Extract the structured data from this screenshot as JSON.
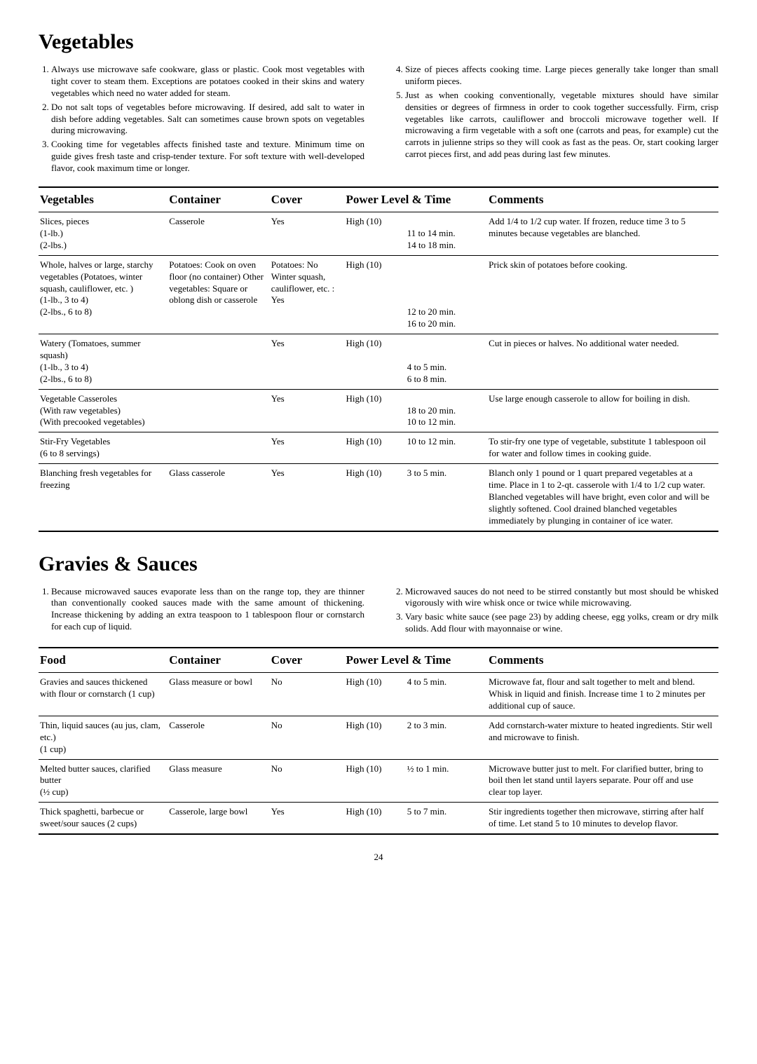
{
  "page_number": "24",
  "veg": {
    "heading": "Vegetables",
    "tips_left": [
      "Always use microwave safe cookware, glass or plastic. Cook most vegetables with tight cover to steam them. Exceptions are potatoes cooked in their skins and watery vegetables which need no water added for steam.",
      "Do not salt tops of vegetables before microwaving. If desired, add salt to water in dish before adding vegetables. Salt can sometimes cause brown spots on vegetables during microwaving.",
      "Cooking time for vegetables affects finished taste and texture. Minimum time on guide gives fresh taste and crisp-tender texture. For soft texture with well-developed flavor, cook maximum time or longer."
    ],
    "tips_right_start": 4,
    "tips_right": [
      "Size of pieces affects cooking time. Large pieces generally take longer than small uniform pieces.",
      "Just as when cooking conventionally, vegetable mixtures should have similar densities or degrees of firmness in order to cook together successfully. Firm, crisp vegetables like carrots, cauliflower and broccoli microwave together well. If microwaving a firm vegetable with a soft one (carrots and peas, for example) cut the carrots in julienne strips so they will cook as fast as the peas. Or, start cooking larger carrot pieces first, and add peas during last few minutes."
    ],
    "headers": [
      "Vegetables",
      "Container",
      "Cover",
      "Power Level & Time",
      "Comments"
    ],
    "rows": [
      {
        "c0": "Slices, pieces\n(1-lb.)\n(2-lbs.)",
        "c1": "Casserole",
        "c2": "Yes",
        "c3a": "High (10)",
        "c3b": "\n11 to 14 min.\n14 to 18 min.",
        "c4": "Add 1/4 to 1/2 cup water. If frozen, reduce time 3 to 5 minutes because vegetables are blanched."
      },
      {
        "c0": "Whole, halves or large, starchy vegetables (Potatoes, winter squash, cauliflower, etc. )\n(1-lb., 3 to 4)\n(2-lbs., 6 to 8)",
        "c1": "Potatoes: Cook on oven floor (no container) Other vegetables: Square or oblong dish or casserole",
        "c2": "Potatoes: No\nWinter squash, cauliflower, etc. : Yes",
        "c3a": "High (10)",
        "c3b": "\n\n\n\n12 to 20 min.\n16 to 20 min.",
        "c4": "Prick skin of potatoes before cooking."
      },
      {
        "c0": "Watery (Tomatoes, summer squash)\n(1-lb., 3 to 4)\n(2-lbs., 6 to 8)",
        "c1": "",
        "c2": "Yes",
        "c3a": "High (10)",
        "c3b": "\n\n4 to 5 min.\n6 to 8 min.",
        "c4": "Cut in pieces or halves. No additional water needed."
      },
      {
        "c0": "Vegetable Casseroles\n(With raw vegetables)\n(With precooked vegetables)",
        "c1": "",
        "c2": "Yes",
        "c3a": "High (10)",
        "c3b": "\n18 to 20 min.\n10 to 12 min.",
        "c4": "Use large enough casserole to allow for boiling in dish."
      },
      {
        "c0": "Stir-Fry Vegetables\n(6 to 8 servings)",
        "c1": "",
        "c2": "Yes",
        "c3a": "High (10)",
        "c3b": "10 to 12 min.",
        "c4": "To stir-fry one type of vegetable, substitute 1 tablespoon oil for water and follow times in cooking guide."
      },
      {
        "c0": "Blanching fresh vegetables for freezing",
        "c1": "Glass casserole",
        "c2": "Yes",
        "c3a": "High (10)",
        "c3b": "3 to 5 min.",
        "c4": "Blanch only 1 pound or 1 quart prepared vegetables at a time. Place in 1 to 2-qt. casserole with 1/4 to 1/2 cup water. Blanched vegetables will have bright, even color and will be slightly softened. Cool drained blanched vegetables immediately by plunging in container of ice water."
      }
    ]
  },
  "sauces": {
    "heading": "Gravies & Sauces",
    "tips_left": [
      "Because microwaved sauces evaporate less than on the range top, they are thinner than conventionally cooked sauces made with the same amount of thickening. Increase thickening by adding an extra teaspoon to 1 tablespoon flour or cornstarch for each cup of liquid."
    ],
    "tips_right_start": 2,
    "tips_right": [
      "Microwaved sauces do not need to be stirred constantly but most should be whisked vigorously with wire whisk once or twice while microwaving.",
      "Vary basic white sauce (see page 23) by adding cheese, egg yolks, cream or dry milk solids. Add flour with mayonnaise or wine."
    ],
    "headers": [
      "Food",
      "Container",
      "Cover",
      "Power Level & Time",
      "Comments"
    ],
    "rows": [
      {
        "c0": "Gravies and sauces thickened with flour or cornstarch (1 cup)",
        "c1": "Glass measure or bowl",
        "c2": "No",
        "c3a": "High (10)",
        "c3b": "4 to 5 min.",
        "c4": "Microwave fat, flour and salt together to melt and blend. Whisk in liquid and finish. Increase time 1 to 2 minutes per additional cup of sauce."
      },
      {
        "c0": "Thin, liquid sauces (au jus, clam, etc.)\n(1 cup)",
        "c1": "Casserole",
        "c2": "No",
        "c3a": "High (10)",
        "c3b": "2 to 3 min.",
        "c4": "Add cornstarch-water mixture to heated ingredients. Stir well and microwave to finish."
      },
      {
        "c0": "Melted butter sauces, clarified butter\n(½ cup)",
        "c1": "Glass measure",
        "c2": "No",
        "c3a": "High (10)",
        "c3b": "½ to 1 min.",
        "c4": "Microwave butter just to melt. For clarified butter, bring to boil then let stand until layers separate. Pour off and use clear top layer."
      },
      {
        "c0": "Thick spaghetti, barbecue or sweet/sour sauces (2 cups)",
        "c1": "Casserole, large bowl",
        "c2": "Yes",
        "c3a": "High (10)",
        "c3b": "5 to 7 min.",
        "c4": "Stir ingredients together then microwave, stirring after half of time. Let stand 5 to 10 minutes to develop flavor."
      }
    ]
  }
}
